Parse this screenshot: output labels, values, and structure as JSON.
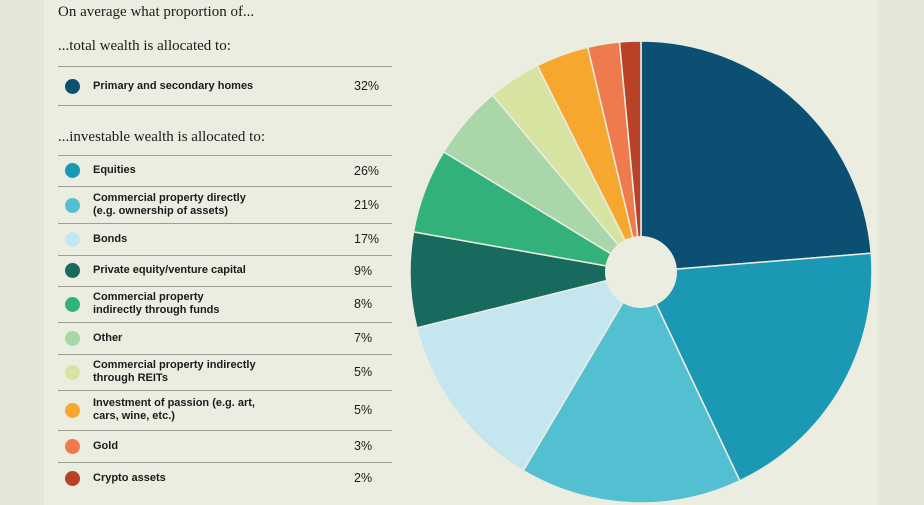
{
  "intro": "On average what proportion of...",
  "total_heading": "...total wealth is allocated to:",
  "invest_heading": "...investable wealth is allocated to:",
  "total_items": [
    {
      "label": "Primary and secondary homes",
      "value": "32%",
      "color": "#0b4f73"
    }
  ],
  "invest_items": [
    {
      "label": "Equities",
      "value": "26%",
      "color": "#1b98b4"
    },
    {
      "label": "Commercial property directly\n(e.g. ownership of assets)",
      "value": "21%",
      "color": "#53c0d2"
    },
    {
      "label": "Bonds",
      "value": "17%",
      "color": "#c4e6ef"
    },
    {
      "label": "Private equity/venture capital",
      "value": "9%",
      "color": "#186a5e"
    },
    {
      "label": "Commercial property\nindirectly through funds",
      "value": "8%",
      "color": "#32b27a"
    },
    {
      "label": "Other",
      "value": "7%",
      "color": "#a9d7a9"
    },
    {
      "label": "Commercial property indirectly\nthrough REITs",
      "value": "5%",
      "color": "#d7e4a1"
    },
    {
      "label": "Investment of passion (e.g. art,\ncars, wine, etc.)",
      "value": "5%",
      "color": "#f6a82e"
    },
    {
      "label": "Gold",
      "value": "3%",
      "color": "#ef7a4d"
    },
    {
      "label": "Crypto assets",
      "value": "2%",
      "color": "#b84127"
    }
  ],
  "chart_data": {
    "type": "pie",
    "style": "donut with small center hole",
    "categories": [
      "Primary and secondary homes",
      "Equities",
      "Commercial property directly (e.g. ownership of assets)",
      "Bonds",
      "Private equity/venture capital",
      "Commercial property indirectly through funds",
      "Other",
      "Commercial property indirectly through REITs",
      "Investment of passion (e.g. art, cars, wine, etc.)",
      "Gold",
      "Crypto assets"
    ],
    "values": [
      32,
      26,
      21,
      17,
      9,
      8,
      7,
      5,
      5,
      3,
      2
    ],
    "colors": [
      "#0b4f73",
      "#1b98b4",
      "#53c0d2",
      "#c4e6ef",
      "#186a5e",
      "#32b27a",
      "#a9d7a9",
      "#d7e4a1",
      "#f6a82e",
      "#ef7a4d",
      "#b84127"
    ],
    "start": "12 o'clock",
    "direction": "clockwise"
  }
}
